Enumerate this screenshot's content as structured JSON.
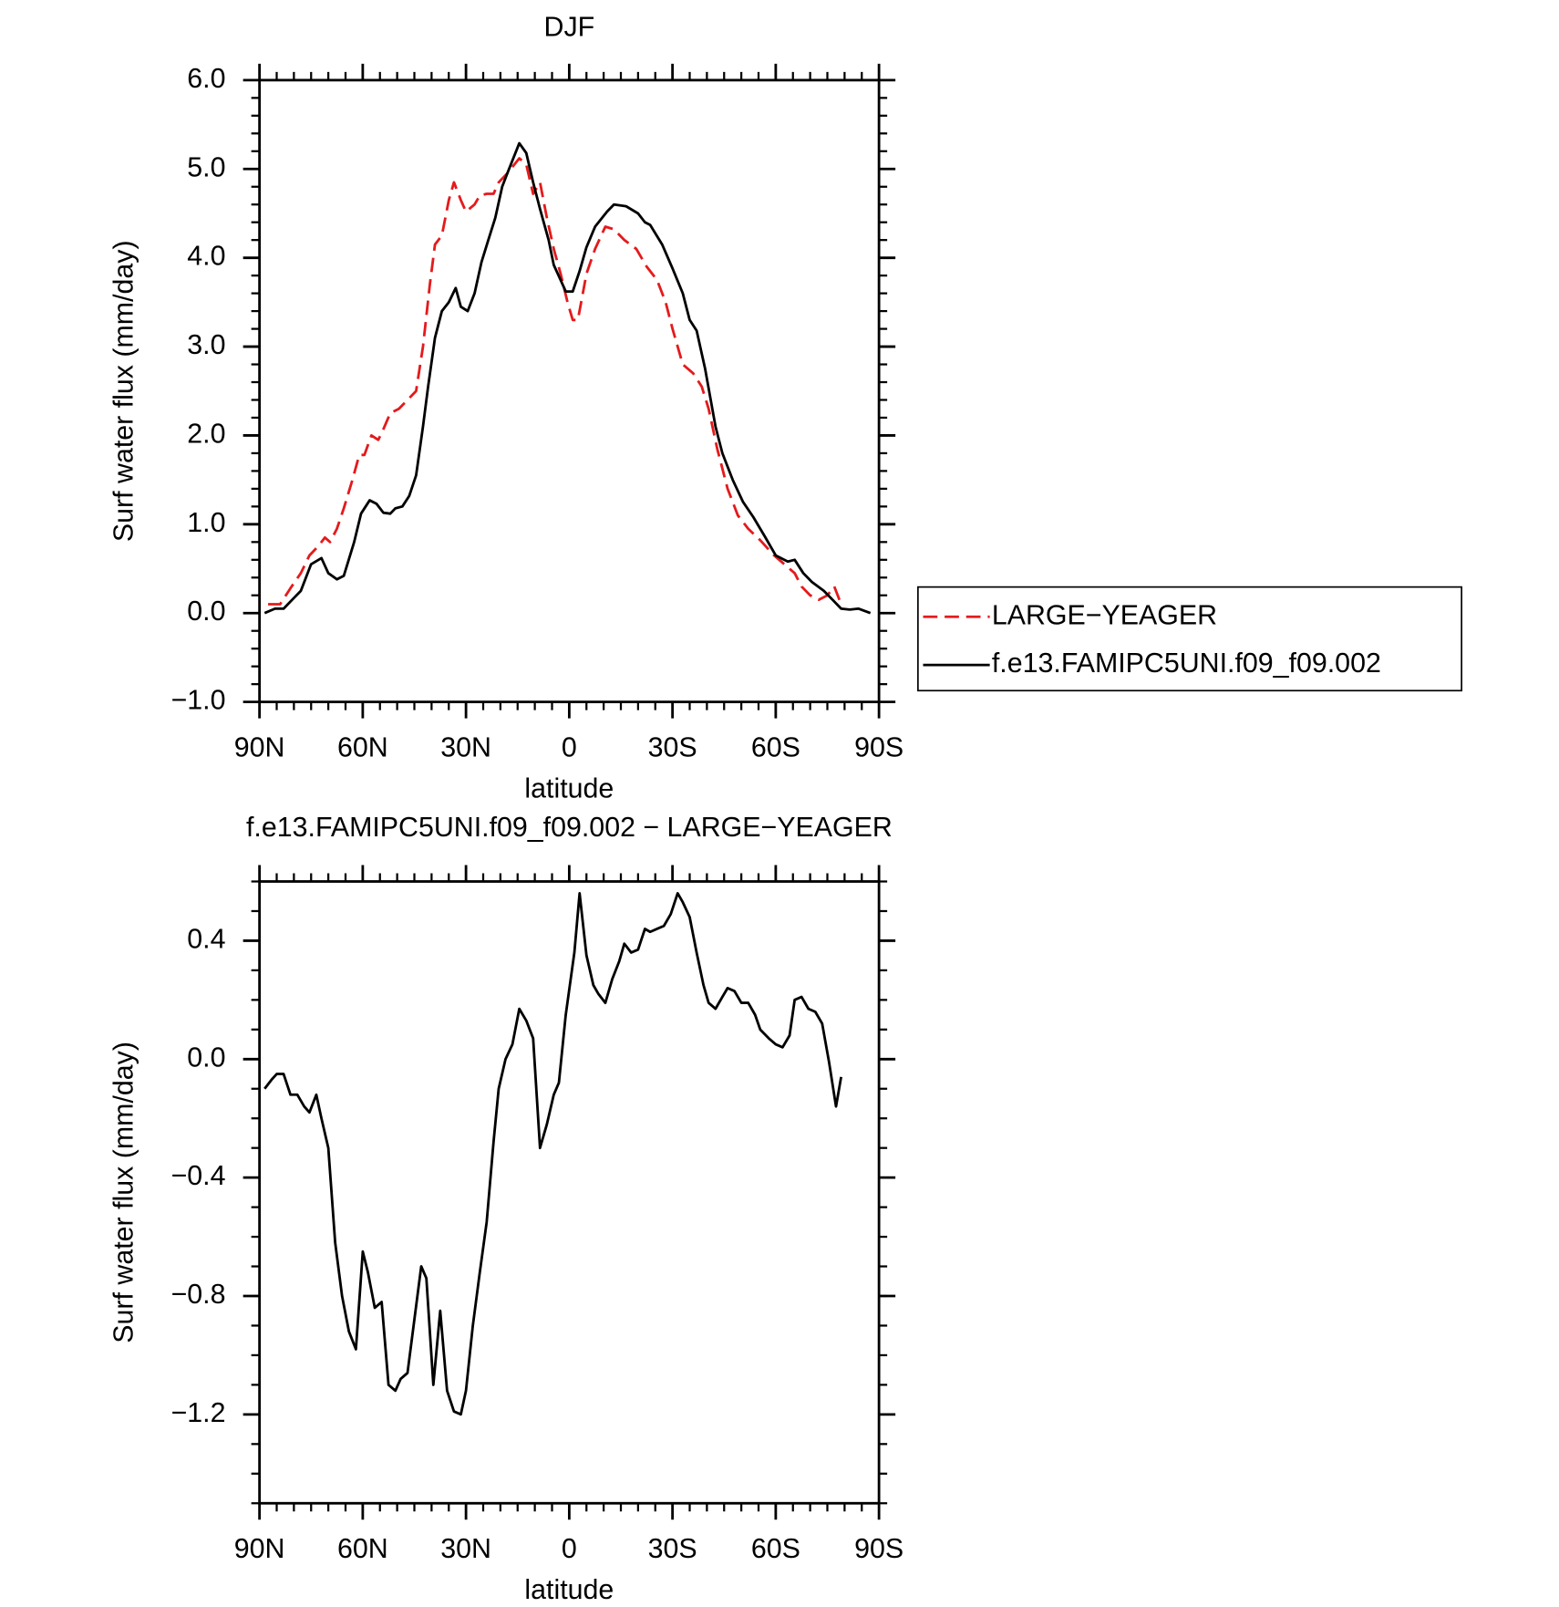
{
  "chart_data": [
    {
      "type": "line",
      "title": "DJF",
      "xlabel": "latitude",
      "ylabel": "Surf water flux (mm/day)",
      "xlim": [
        90,
        -90
      ],
      "xticks": [
        {
          "value": 90,
          "label": "90N"
        },
        {
          "value": 60,
          "label": "60N"
        },
        {
          "value": 30,
          "label": "30N"
        },
        0,
        {
          "value": -30,
          "label": "30S"
        },
        {
          "value": -60,
          "label": "60S"
        },
        {
          "value": -90,
          "label": "90S"
        }
      ],
      "ylim": [
        -1,
        6
      ],
      "yticks": [
        {
          "value": -1,
          "label": "−1.0"
        },
        {
          "value": 0,
          "label": "0.0"
        },
        {
          "value": 1,
          "label": "1.0"
        },
        {
          "value": 2,
          "label": "2.0"
        },
        {
          "value": 3,
          "label": "3.0"
        },
        {
          "value": 4,
          "label": "4.0"
        },
        {
          "value": 5,
          "label": "5.0"
        },
        {
          "value": 6,
          "label": "6.0"
        }
      ],
      "legend": "right",
      "series": [
        {
          "name": "LARGE−YEAGER",
          "color": "#e41a1c",
          "dash": true,
          "x": [
            87.5,
            84,
            81,
            78,
            75.5,
            73,
            71,
            69.5,
            67.5,
            65.5,
            63,
            61,
            59.5,
            57.5,
            55.5,
            54,
            52,
            49.5,
            47,
            44.5,
            42.5,
            40.5,
            39,
            37,
            35,
            33.5,
            31.5,
            30,
            27.5,
            26,
            24,
            22,
            20.5,
            18,
            14.5,
            12.5,
            10.5,
            8.5,
            6.5,
            4.5,
            2.5,
            0.5,
            -1,
            -2.5,
            -5,
            -7.5,
            -10.5,
            -13,
            -16,
            -19.5,
            -22.5,
            -25.5,
            -28,
            -30,
            -33,
            -36,
            -38.5,
            -40.5,
            -43,
            -46,
            -49,
            -52,
            -55.5,
            -59.5,
            -62.5,
            -65.5,
            -67.5,
            -70,
            -72.5,
            -75,
            -77,
            -79
          ],
          "values": [
            0.1,
            0.1,
            0.28,
            0.45,
            0.65,
            0.75,
            0.85,
            0.8,
            0.95,
            1.18,
            1.5,
            1.78,
            1.78,
            2.0,
            1.95,
            2.07,
            2.25,
            2.3,
            2.4,
            2.5,
            3.0,
            3.7,
            4.15,
            4.25,
            4.65,
            4.85,
            4.65,
            4.52,
            4.6,
            4.7,
            4.72,
            4.72,
            4.85,
            4.95,
            5.12,
            5.05,
            4.72,
            4.85,
            4.45,
            4.1,
            3.82,
            3.5,
            3.3,
            3.3,
            3.82,
            4.1,
            4.35,
            4.32,
            4.2,
            4.1,
            3.9,
            3.75,
            3.5,
            3.2,
            2.8,
            2.7,
            2.55,
            2.3,
            1.85,
            1.4,
            1.1,
            0.95,
            0.82,
            0.65,
            0.55,
            0.45,
            0.3,
            0.2,
            0.15,
            0.2,
            0.3,
            0.1
          ]
        },
        {
          "name": "f.e13.FAMIPC5UNI.f09_f09.002",
          "color": "#000000",
          "dash": false,
          "x": [
            88.5,
            85.5,
            83,
            80.5,
            78,
            75,
            72,
            70,
            67.5,
            65.5,
            62.5,
            60.5,
            58,
            56,
            54,
            52,
            50.5,
            48.5,
            46.5,
            44.5,
            42.5,
            41,
            39,
            37,
            35,
            33,
            31.5,
            29.5,
            27.5,
            25.5,
            23.5,
            21.5,
            19.5,
            18,
            14.5,
            12.5,
            10.5,
            8.5,
            6,
            4.5,
            2.5,
            1,
            -1,
            -3,
            -5,
            -7.5,
            -11,
            -13,
            -16.5,
            -20,
            -22,
            -23.5,
            -27,
            -30,
            -33,
            -35,
            -37,
            -39.5,
            -42.5,
            -44.5,
            -47.5,
            -50.5,
            -53.5,
            -57,
            -60,
            -63.5,
            -65.5,
            -68,
            -70.5,
            -74,
            -76.5,
            -79,
            -81.5,
            -84,
            -87.5
          ],
          "values": [
            0.0,
            0.05,
            0.05,
            0.15,
            0.25,
            0.55,
            0.62,
            0.45,
            0.38,
            0.42,
            0.8,
            1.12,
            1.27,
            1.23,
            1.13,
            1.12,
            1.18,
            1.2,
            1.32,
            1.55,
            2.1,
            2.55,
            3.1,
            3.4,
            3.5,
            3.66,
            3.45,
            3.4,
            3.6,
            3.95,
            4.2,
            4.45,
            4.8,
            4.95,
            5.29,
            5.18,
            4.85,
            4.55,
            4.2,
            3.92,
            3.75,
            3.62,
            3.62,
            3.85,
            4.12,
            4.35,
            4.52,
            4.6,
            4.58,
            4.5,
            4.4,
            4.37,
            4.15,
            3.88,
            3.6,
            3.3,
            3.18,
            2.75,
            2.1,
            1.8,
            1.5,
            1.25,
            1.08,
            0.85,
            0.65,
            0.58,
            0.6,
            0.45,
            0.35,
            0.25,
            0.15,
            0.05,
            0.04,
            0.05,
            0.0
          ]
        }
      ]
    },
    {
      "type": "line",
      "title": "f.e13.FAMIPC5UNI.f09_f09.002 − LARGE−YEAGER",
      "xlabel": "latitude",
      "ylabel": "Surf water flux (mm/day)",
      "xlim": [
        90,
        -90
      ],
      "xticks": [
        {
          "value": 90,
          "label": "90N"
        },
        {
          "value": 60,
          "label": "60N"
        },
        {
          "value": 30,
          "label": "30N"
        },
        0,
        {
          "value": -30,
          "label": "30S"
        },
        {
          "value": -60,
          "label": "60S"
        },
        {
          "value": -90,
          "label": "90S"
        }
      ],
      "ylim": [
        -1.5,
        0.6
      ],
      "yticks": [
        {
          "value": -1.2,
          "label": "−1.2"
        },
        {
          "value": -0.8,
          "label": "−0.8"
        },
        {
          "value": -0.4,
          "label": "−0.4"
        },
        {
          "value": 0,
          "label": "0.0"
        },
        0.4
      ],
      "series": [
        {
          "color": "#000000",
          "dash": false,
          "x": [
            88.5,
            86.5,
            85,
            83,
            81,
            79,
            77,
            75.5,
            73.5,
            72,
            70,
            68,
            66,
            64,
            62,
            60,
            58.5,
            56.5,
            54.5,
            52.5,
            50.5,
            49,
            47,
            45,
            43,
            41.5,
            39.5,
            37.5,
            35.5,
            33.5,
            31.5,
            30,
            28,
            26,
            24,
            22,
            20.5,
            18.5,
            16.5,
            14.5,
            12.5,
            10.5,
            8.5,
            6.5,
            4.5,
            3,
            1,
            -1.5,
            -3,
            -5,
            -7,
            -8.5,
            -10.5,
            -12.5,
            -14.5,
            -16,
            -18,
            -20,
            -22,
            -23.5,
            -25.5,
            -27.5,
            -29.5,
            -31.5,
            -33,
            -35,
            -37,
            -39,
            -40.5,
            -42.5,
            -44.5,
            -46,
            -48,
            -50,
            -52,
            -54,
            -55.5,
            -58,
            -60,
            -62,
            -64,
            -65.5,
            -67.5,
            -69.5,
            -71.5,
            -73.5,
            -75.5,
            -77.5,
            -79
          ],
          "values": [
            -0.1,
            -0.07,
            -0.05,
            -0.05,
            -0.12,
            -0.12,
            -0.16,
            -0.18,
            -0.12,
            -0.2,
            -0.3,
            -0.62,
            -0.8,
            -0.92,
            -0.98,
            -0.65,
            -0.72,
            -0.84,
            -0.82,
            -1.1,
            -1.12,
            -1.08,
            -1.06,
            -0.88,
            -0.7,
            -0.74,
            -1.1,
            -0.85,
            -1.12,
            -1.19,
            -1.2,
            -1.12,
            -0.9,
            -0.72,
            -0.55,
            -0.28,
            -0.1,
            0.0,
            0.05,
            0.17,
            0.13,
            0.07,
            -0.3,
            -0.22,
            -0.12,
            -0.08,
            0.15,
            0.36,
            0.56,
            0.35,
            0.25,
            0.22,
            0.19,
            0.27,
            0.33,
            0.39,
            0.36,
            0.37,
            0.44,
            0.43,
            0.44,
            0.45,
            0.49,
            0.56,
            0.53,
            0.48,
            0.36,
            0.25,
            0.19,
            0.17,
            0.21,
            0.24,
            0.23,
            0.19,
            0.19,
            0.15,
            0.1,
            0.07,
            0.05,
            0.04,
            0.08,
            0.2,
            0.21,
            0.17,
            0.16,
            0.12,
            -0.01,
            -0.16,
            -0.06
          ]
        }
      ]
    }
  ]
}
